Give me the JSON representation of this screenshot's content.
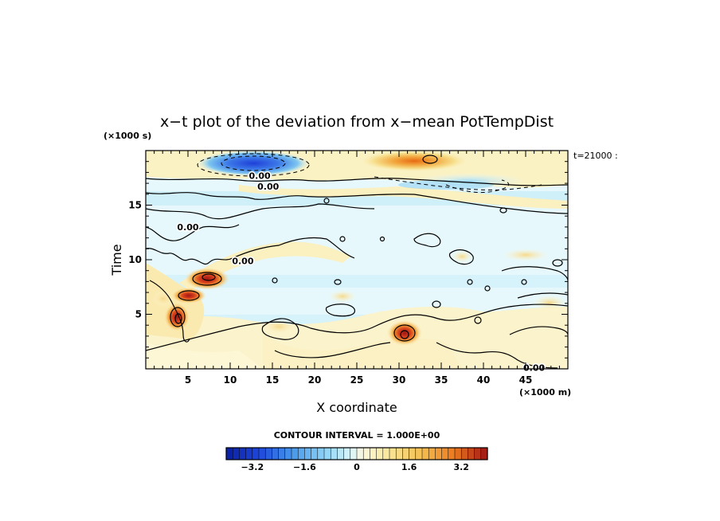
{
  "chart_data": {
    "type": "heatmap",
    "title": "x−t plot of the deviation from x−mean PotTempDist",
    "xlabel": "X coordinate",
    "ylabel": "Time",
    "x_unit": "(×1000 m)",
    "y_unit": "(×1000 s)",
    "time_annotation": "t=21000 :",
    "xlim": [
      0,
      50
    ],
    "ylim": [
      0,
      20
    ],
    "x_ticks": [
      5,
      10,
      15,
      20,
      25,
      30,
      35,
      40,
      45
    ],
    "y_ticks": [
      5,
      10,
      15
    ],
    "contour_interval_label": "CONTOUR INTERVAL = 1.000E+00",
    "contour_labels": [
      {
        "text": "0.00",
        "x": 13.5,
        "y": 17.7
      },
      {
        "text": "0.00",
        "x": 14.5,
        "y": 16.7
      },
      {
        "text": "0.00",
        "x": 5.0,
        "y": 13.0
      },
      {
        "text": "0.00",
        "x": 11.5,
        "y": 9.9
      },
      {
        "text": "0.00",
        "x": 46.0,
        "y": 0.1
      }
    ],
    "features": [
      {
        "kind": "negative-core",
        "center": [
          12.5,
          19.0
        ],
        "peak": -3.3
      },
      {
        "kind": "positive-core",
        "center": [
          33.5,
          19.0
        ],
        "peak": 2.2
      },
      {
        "kind": "negative-band",
        "center": [
          36.0,
          16.8
        ],
        "peak": -1.4
      },
      {
        "kind": "positive-cluster",
        "center": [
          7.5,
          8.5
        ],
        "peak": 3.4
      },
      {
        "kind": "positive-cluster",
        "center": [
          4.5,
          5.0
        ],
        "peak": 3.2
      },
      {
        "kind": "positive-core",
        "center": [
          30.5,
          3.2
        ],
        "peak": 3.0
      }
    ],
    "colorbar": {
      "min": -4.0,
      "max": 4.0,
      "step": 0.2,
      "tick_values": [
        -3.2,
        -1.6,
        0,
        1.6,
        3.2
      ],
      "tick_labels": [
        "−3.2",
        "−1.6",
        "0",
        "1.6",
        "3.2"
      ]
    }
  }
}
